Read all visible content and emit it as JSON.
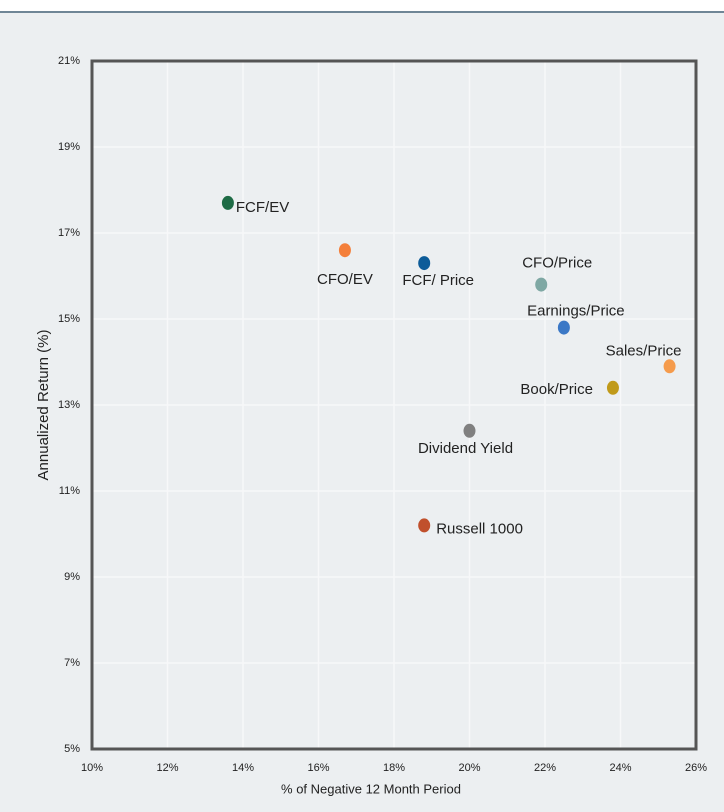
{
  "chart_data": {
    "type": "scatter",
    "x_label": "% of Negative 12 Month Period",
    "y_label": "Annualized Return (%)",
    "xlim": [
      10,
      26
    ],
    "ylim": [
      5,
      21
    ],
    "xticks": [
      {
        "value": 10,
        "label": "10%"
      },
      {
        "value": 12,
        "label": "12%"
      },
      {
        "value": 14,
        "label": "14%"
      },
      {
        "value": 16,
        "label": "16%"
      },
      {
        "value": 18,
        "label": "18%"
      },
      {
        "value": 20,
        "label": "20%"
      },
      {
        "value": 22,
        "label": "22%"
      },
      {
        "value": 24,
        "label": "24%"
      },
      {
        "value": 26,
        "label": "26%"
      }
    ],
    "yticks": [
      {
        "value": 5,
        "label": "5%"
      },
      {
        "value": 7,
        "label": "7%"
      },
      {
        "value": 9,
        "label": "9%"
      },
      {
        "value": 11,
        "label": "11%"
      },
      {
        "value": 13,
        "label": "13%"
      },
      {
        "value": 15,
        "label": "15%"
      },
      {
        "value": 17,
        "label": "17%"
      },
      {
        "value": 19,
        "label": "19%"
      },
      {
        "value": 21,
        "label": "21%"
      }
    ],
    "grid": true,
    "series": [
      {
        "name": "FCF/EV",
        "color": "#1e6b45",
        "x": [
          13.6
        ],
        "values": [
          17.7
        ]
      },
      {
        "name": "CFO/EV",
        "color": "#f47f3a",
        "x": [
          16.7
        ],
        "values": [
          16.6
        ]
      },
      {
        "name": "FCF/ Price",
        "color": "#0d5c99",
        "x": [
          18.8
        ],
        "values": [
          16.3
        ]
      },
      {
        "name": "CFO/Price",
        "color": "#7fa8a4",
        "x": [
          21.9
        ],
        "values": [
          15.8
        ]
      },
      {
        "name": "Earnings/Price",
        "color": "#3b78c6",
        "x": [
          22.5
        ],
        "values": [
          14.8
        ]
      },
      {
        "name": "Sales/Price",
        "color": "#f59b4c",
        "x": [
          25.3
        ],
        "values": [
          13.9
        ]
      },
      {
        "name": "Book/Price",
        "color": "#c09a1a",
        "x": [
          23.8
        ],
        "values": [
          13.4
        ]
      },
      {
        "name": "Dividend Yield",
        "color": "#808080",
        "x": [
          20.0
        ],
        "values": [
          12.4
        ]
      },
      {
        "name": "Russell 1000",
        "color": "#c0502c",
        "x": [
          18.8
        ],
        "values": [
          10.2
        ]
      }
    ]
  }
}
